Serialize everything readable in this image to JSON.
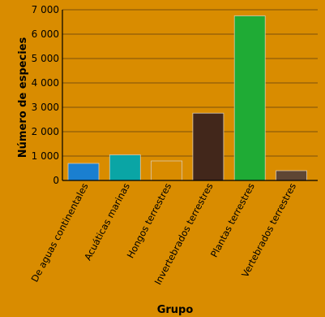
{
  "chart_data": {
    "type": "bar",
    "title": "",
    "xlabel": "Grupo",
    "ylabel": "Número de especies",
    "ylim": [
      0,
      7000
    ],
    "yticks": [
      {
        "value": 0,
        "label": "0"
      },
      {
        "value": 1000,
        "label": "1 000"
      },
      {
        "value": 2000,
        "label": "2 000"
      },
      {
        "value": 3000,
        "label": "3 000"
      },
      {
        "value": 4000,
        "label": "4 000"
      },
      {
        "value": 5000,
        "label": "5 000"
      },
      {
        "value": 6000,
        "label": "6 000"
      },
      {
        "value": 7000,
        "label": "7 000"
      }
    ],
    "grid": true,
    "categories": [
      "De aguas continentales",
      "Acuáticas marinas",
      "Hongos terrestres",
      "Invertebrados terrestres",
      "Plantas terrestres",
      "Vertebrados terrestres"
    ],
    "values": [
      700,
      1050,
      800,
      2760,
      6750,
      400
    ],
    "colors": [
      "#1a7fd0",
      "#0aa5a5",
      "#d98c00",
      "#42271b",
      "#1fab35",
      "#5e4634"
    ]
  }
}
